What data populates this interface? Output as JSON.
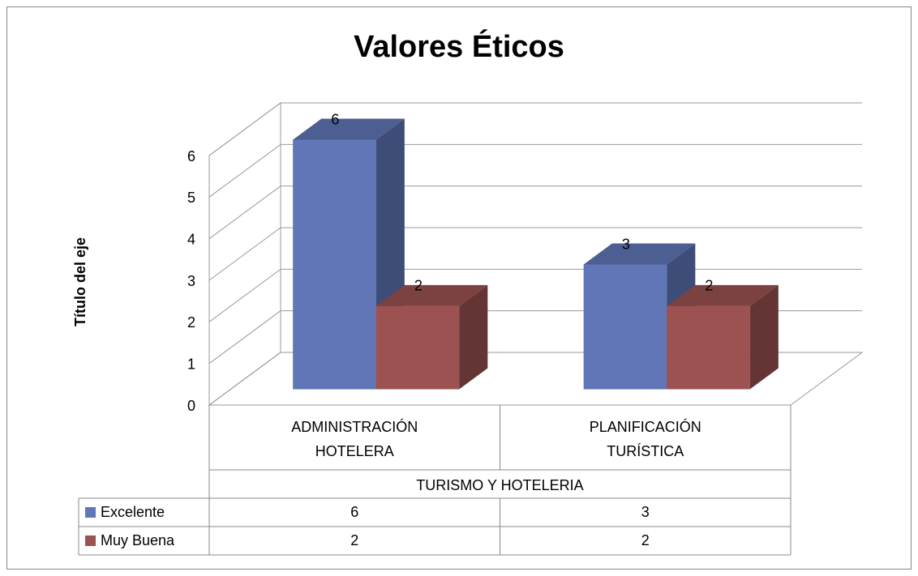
{
  "chart_data": {
    "type": "bar",
    "title": "Valores Éticos",
    "y_axis_label": "Título del eje",
    "group_label": "TURISMO Y HOTELERIA",
    "categories": [
      "ADMINISTRACIÓN HOTELERA",
      "PLANIFICACIÓN TURÍSTICA"
    ],
    "series": [
      {
        "name": "Excelente",
        "color": "#6076b7",
        "values": [
          6,
          3
        ]
      },
      {
        "name": "Muy Buena",
        "color": "#9b5251",
        "values": [
          2,
          2
        ]
      }
    ],
    "ylim": [
      0,
      6
    ],
    "yticks": [
      0,
      1,
      2,
      3,
      4,
      5,
      6
    ],
    "grid": true,
    "data_table": true
  }
}
